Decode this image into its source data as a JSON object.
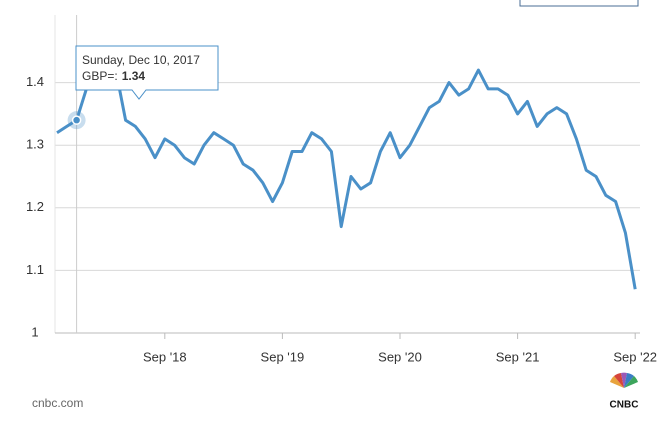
{
  "chart_data": {
    "type": "line",
    "x": [
      "2017-10",
      "2017-11",
      "2017-12",
      "2018-01",
      "2018-02",
      "2018-03",
      "2018-04",
      "2018-05",
      "2018-06",
      "2018-07",
      "2018-08",
      "2018-09",
      "2018-10",
      "2018-11",
      "2018-12",
      "2019-01",
      "2019-02",
      "2019-03",
      "2019-04",
      "2019-05",
      "2019-06",
      "2019-07",
      "2019-08",
      "2019-09",
      "2019-10",
      "2019-11",
      "2019-12",
      "2020-01",
      "2020-02",
      "2020-03",
      "2020-04",
      "2020-05",
      "2020-06",
      "2020-07",
      "2020-08",
      "2020-09",
      "2020-10",
      "2020-11",
      "2020-12",
      "2021-01",
      "2021-02",
      "2021-03",
      "2021-04",
      "2021-05",
      "2021-06",
      "2021-07",
      "2021-08",
      "2021-09",
      "2021-10",
      "2021-11",
      "2021-12",
      "2022-01",
      "2022-02",
      "2022-03",
      "2022-04",
      "2022-05",
      "2022-06",
      "2022-07",
      "2022-08",
      "2022-09"
    ],
    "series": [
      {
        "name": "GBP=",
        "color": "#4a90c8",
        "values": [
          1.32,
          1.33,
          1.34,
          1.39,
          1.4,
          1.4,
          1.42,
          1.34,
          1.33,
          1.31,
          1.28,
          1.31,
          1.3,
          1.28,
          1.27,
          1.3,
          1.32,
          1.31,
          1.3,
          1.27,
          1.26,
          1.24,
          1.21,
          1.24,
          1.29,
          1.29,
          1.32,
          1.31,
          1.29,
          1.17,
          1.25,
          1.23,
          1.24,
          1.29,
          1.32,
          1.28,
          1.3,
          1.33,
          1.36,
          1.37,
          1.4,
          1.38,
          1.39,
          1.42,
          1.39,
          1.39,
          1.38,
          1.35,
          1.37,
          1.33,
          1.35,
          1.36,
          1.35,
          1.31,
          1.26,
          1.25,
          1.22,
          1.21,
          1.16,
          1.07
        ]
      }
    ],
    "xticks": [
      {
        "value": "2018-09",
        "label": "Sep '18"
      },
      {
        "value": "2019-09",
        "label": "Sep '19"
      },
      {
        "value": "2020-09",
        "label": "Sep '20"
      },
      {
        "value": "2021-09",
        "label": "Sep '21"
      },
      {
        "value": "2022-09",
        "label": "Sep '22"
      }
    ],
    "ylim": [
      1,
      1.5
    ],
    "yticks": [
      1,
      1.1,
      1.2,
      1.3,
      1.4
    ],
    "grid": true,
    "tooltip": {
      "date": "Sunday, Dec 10, 2017",
      "label": "GBP=:",
      "value": 1.34,
      "x": "2017-12"
    },
    "source": "cnbc.com",
    "logo": "CNBC"
  }
}
